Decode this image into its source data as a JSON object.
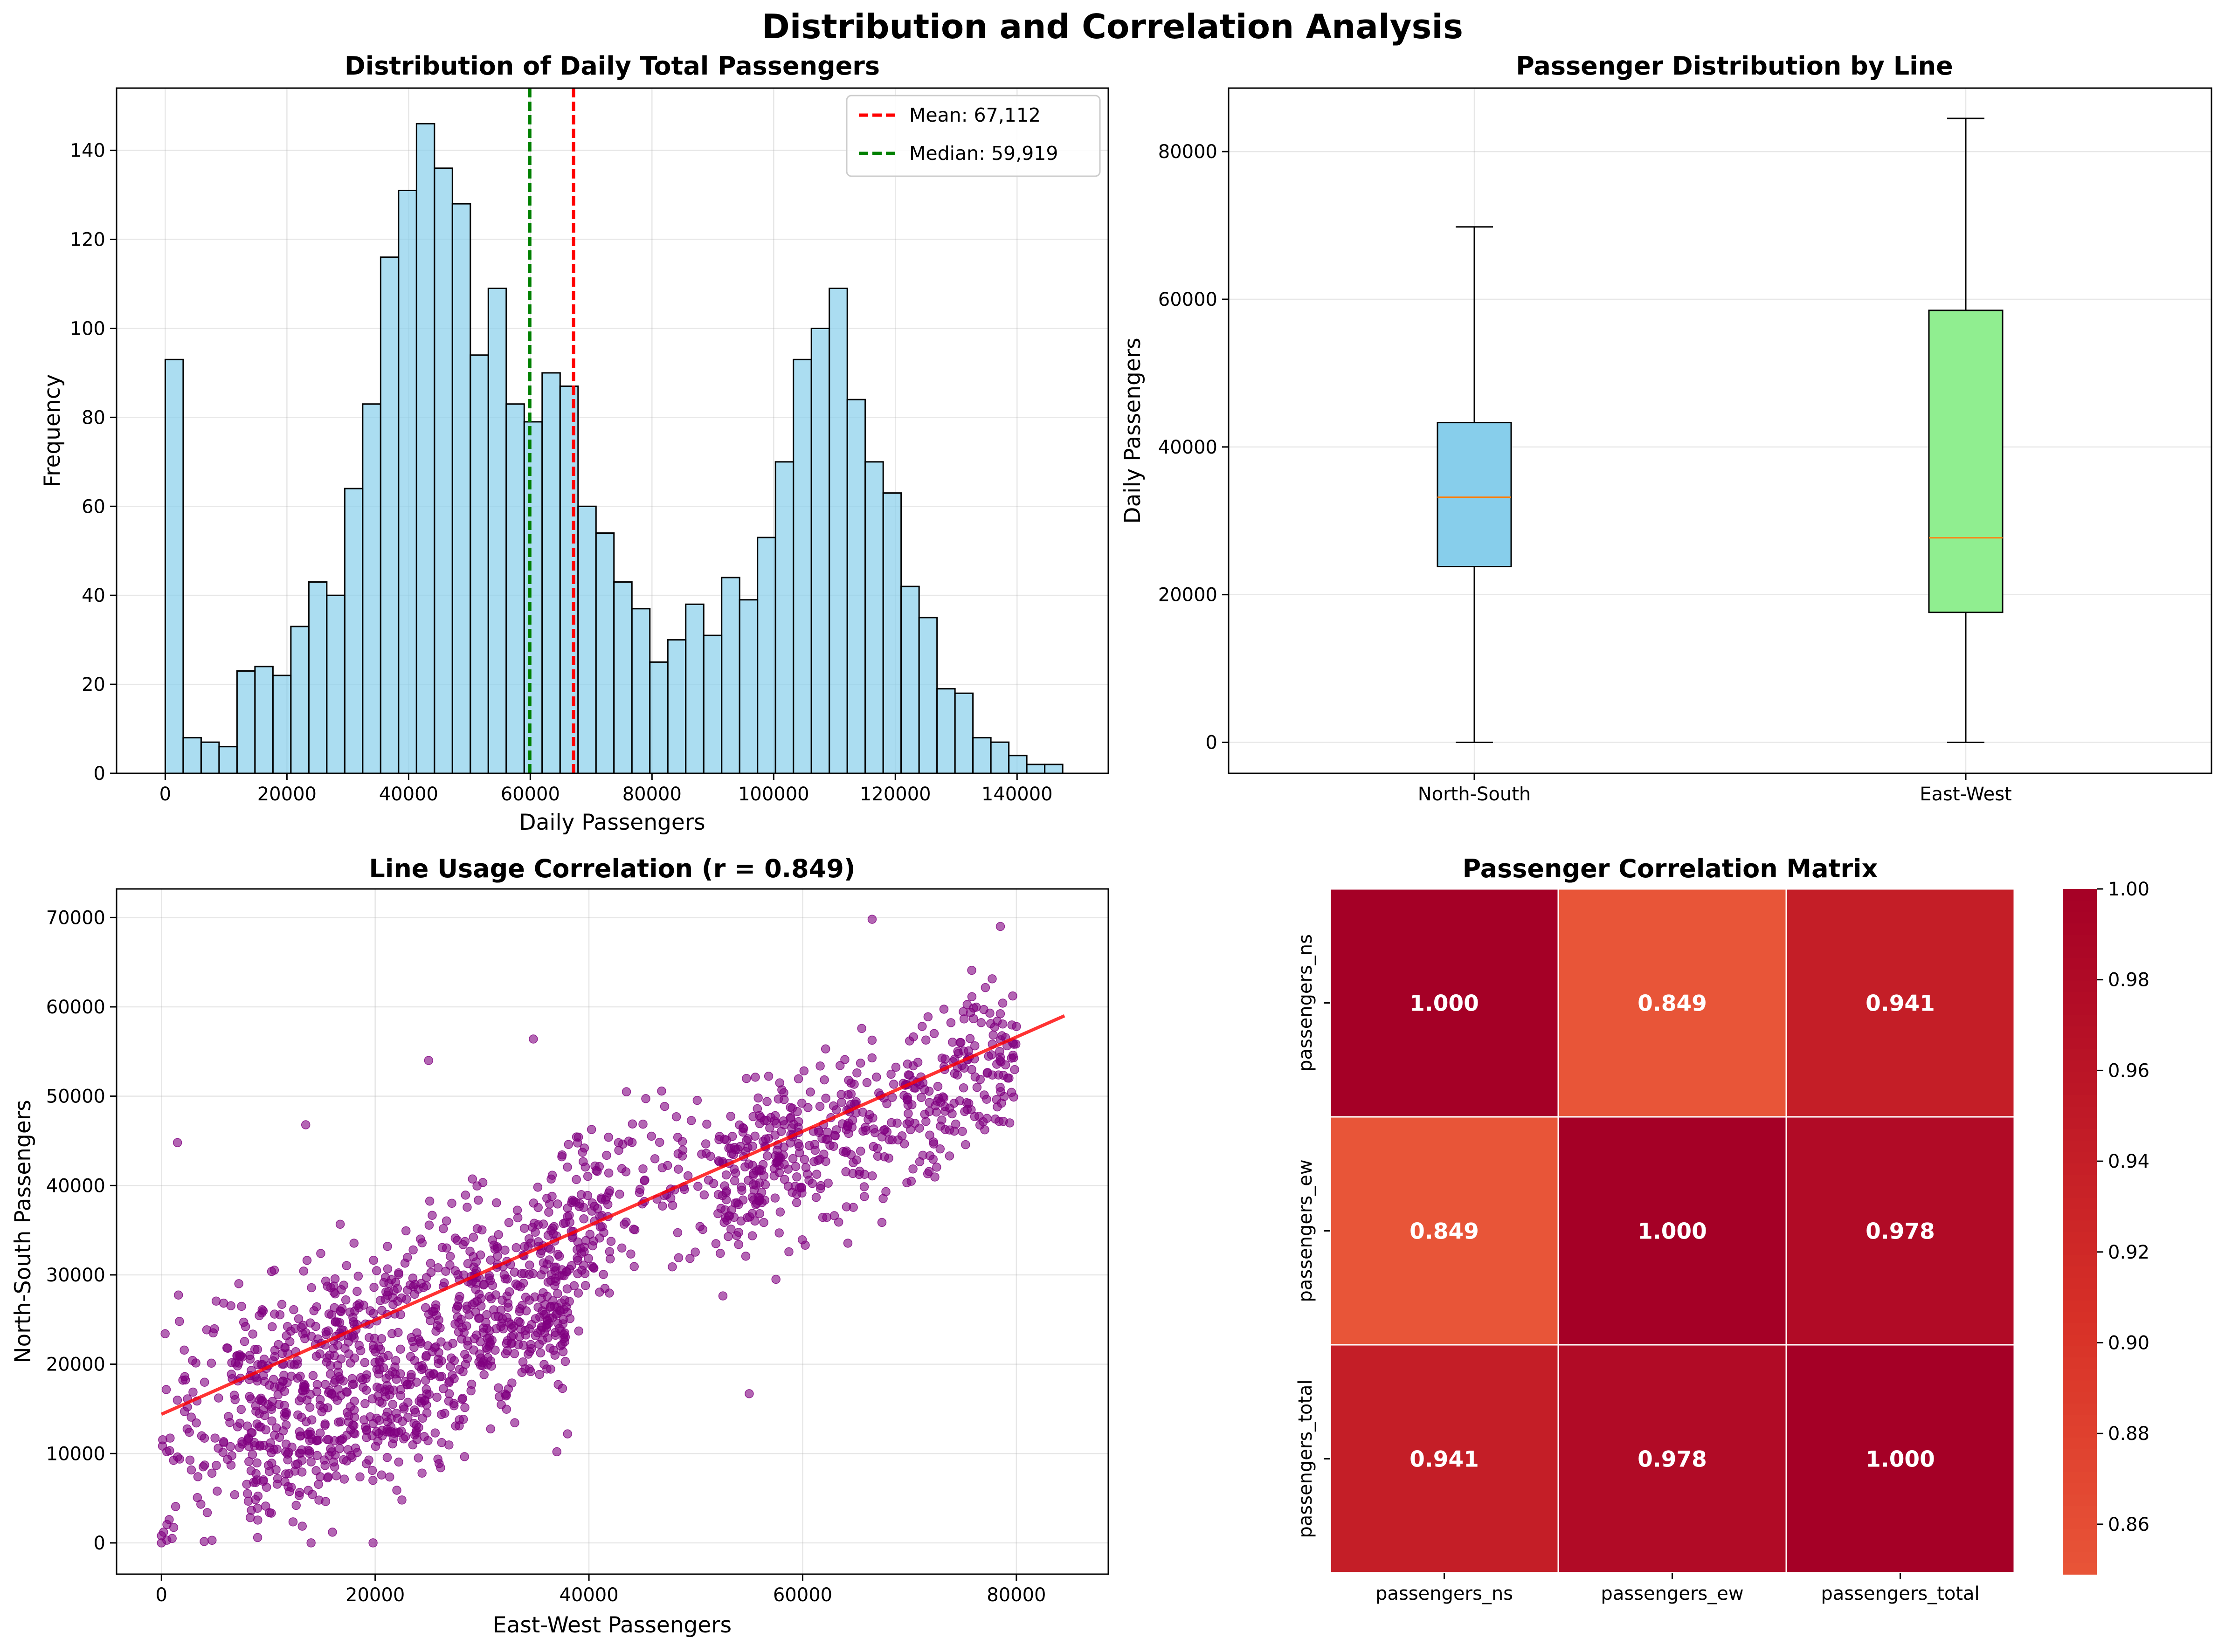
{
  "figure": {
    "title": "Distribution and Correlation Analysis"
  },
  "colors": {
    "hist_bar": "#87ceeb",
    "mean_line": "#ff0000",
    "median_line": "#008000",
    "box_ns": "#87ceeb",
    "box_ew": "#90ee90",
    "box_median": "#ff7f0e",
    "scatter_point": "#800080",
    "trend_line": "#ff0000"
  },
  "chart_data": [
    {
      "type": "histogram",
      "title": "Distribution of Daily Total Passengers",
      "xlabel": "Daily Passengers",
      "ylabel": "Frequency",
      "xlim": [
        -8000,
        155000
      ],
      "ylim": [
        0,
        154
      ],
      "xticks": [
        0,
        20000,
        40000,
        60000,
        80000,
        100000,
        120000,
        140000
      ],
      "xtick_labels": [
        "0",
        "20000",
        "40000",
        "60000",
        "80000",
        "100000",
        "120000",
        "140000"
      ],
      "yticks": [
        0,
        20,
        40,
        60,
        80,
        100,
        120,
        140
      ],
      "ytick_labels": [
        "0",
        "20",
        "40",
        "60",
        "80",
        "100",
        "120",
        "140"
      ],
      "bin_start": 0,
      "bin_width": 2950,
      "counts": [
        93,
        8,
        7,
        6,
        23,
        24,
        22,
        33,
        43,
        40,
        64,
        83,
        116,
        131,
        146,
        136,
        128,
        94,
        109,
        83,
        79,
        90,
        87,
        60,
        54,
        43,
        37,
        25,
        30,
        38,
        31,
        44,
        39,
        53,
        70,
        93,
        100,
        109,
        84,
        70,
        63,
        42,
        35,
        19,
        18,
        8,
        7,
        4,
        2,
        2
      ],
      "mean": 67112,
      "median": 59919,
      "legend": [
        "Mean: 67,112",
        "Median: 59,919"
      ],
      "legend_position": "upper right",
      "grid": true
    },
    {
      "type": "box",
      "title": "Passenger Distribution by Line",
      "xlabel": "",
      "ylabel": "Daily Passengers",
      "ylim": [
        -4200,
        88600
      ],
      "yticks": [
        0,
        20000,
        40000,
        60000,
        80000
      ],
      "ytick_labels": [
        "0",
        "20000",
        "40000",
        "60000",
        "80000"
      ],
      "categories": [
        "North-South",
        "East-West"
      ],
      "boxes": [
        {
          "min": 0,
          "q1": 23800,
          "median": 33200,
          "q3": 43300,
          "max": 69800
        },
        {
          "min": 0,
          "q1": 17600,
          "median": 27700,
          "q3": 58500,
          "max": 84500
        }
      ],
      "grid": true
    },
    {
      "type": "scatter",
      "title": "Line Usage Correlation (r = 0.849)",
      "xlabel": "East-West Passengers",
      "ylabel": "North-South Passengers",
      "xlim": [
        -4200,
        88600
      ],
      "ylim": [
        -3500,
        73200
      ],
      "xticks": [
        0,
        20000,
        40000,
        60000,
        80000
      ],
      "xtick_labels": [
        "0",
        "20000",
        "40000",
        "60000",
        "80000"
      ],
      "yticks": [
        0,
        10000,
        20000,
        30000,
        40000,
        50000,
        60000,
        70000
      ],
      "ytick_labels": [
        "0",
        "10000",
        "20000",
        "30000",
        "40000",
        "50000",
        "60000",
        "70000"
      ],
      "trend": {
        "x": [
          0,
          84500
        ],
        "y": [
          14400,
          59000
        ]
      },
      "point_count": 1800,
      "point_seed": 7,
      "clusters": [
        {
          "n": 650,
          "xmin": 6000,
          "xmax": 42000,
          "slope": 0.5,
          "intercept": 14000,
          "sd": 5000
        },
        {
          "n": 420,
          "xmin": 8000,
          "xmax": 38000,
          "slope": 0.62,
          "intercept": 1500,
          "sd": 3500
        },
        {
          "n": 480,
          "xmin": 52000,
          "xmax": 80000,
          "slope": 0.55,
          "intercept": 11000,
          "sd": 4500
        },
        {
          "n": 130,
          "xmin": 36000,
          "xmax": 56000,
          "slope": 0.3,
          "intercept": 27000,
          "sd": 5000
        },
        {
          "n": 60,
          "xmin": 0,
          "xmax": 6000,
          "slope": 1.5,
          "intercept": 8000,
          "sd": 9000
        }
      ],
      "extra_points": [
        [
          0,
          0
        ],
        [
          0,
          800
        ],
        [
          500,
          300
        ],
        [
          200,
          1200
        ],
        [
          1000,
          500
        ],
        [
          14000,
          0
        ],
        [
          19800,
          0
        ],
        [
          16000,
          1200
        ],
        [
          9000,
          600
        ],
        [
          66500,
          69800
        ],
        [
          78500,
          69000
        ],
        [
          55000,
          16700
        ],
        [
          37000,
          10200
        ],
        [
          38000,
          12200
        ],
        [
          34800,
          56400
        ],
        [
          25000,
          54000
        ],
        [
          22500,
          4800
        ],
        [
          57500,
          29500
        ],
        [
          13500,
          46800
        ],
        [
          1500,
          44800
        ]
      ],
      "grid": true
    },
    {
      "type": "heatmap",
      "title": "Passenger Correlation Matrix",
      "row_labels": [
        "passengers_ns",
        "passengers_ew",
        "passengers_total"
      ],
      "col_labels": [
        "passengers_ns",
        "passengers_ew",
        "passengers_total"
      ],
      "values": [
        [
          1.0,
          0.849,
          0.941
        ],
        [
          0.849,
          1.0,
          0.978
        ],
        [
          0.941,
          0.978,
          1.0
        ]
      ],
      "annotations": [
        [
          "1.000",
          "0.849",
          "0.941"
        ],
        [
          "0.849",
          "1.000",
          "0.978"
        ],
        [
          "0.941",
          "0.978",
          "1.000"
        ]
      ],
      "colormap": "RdYlBu_r",
      "vmin": 0.849,
      "vmax": 1.0,
      "colorbar_ticks": [
        0.86,
        0.88,
        0.9,
        0.92,
        0.94,
        0.96,
        0.98,
        1.0
      ],
      "colorbar_tick_labels": [
        "0.86",
        "0.88",
        "0.90",
        "0.92",
        "0.94",
        "0.96",
        "0.98",
        "1.00"
      ]
    }
  ]
}
